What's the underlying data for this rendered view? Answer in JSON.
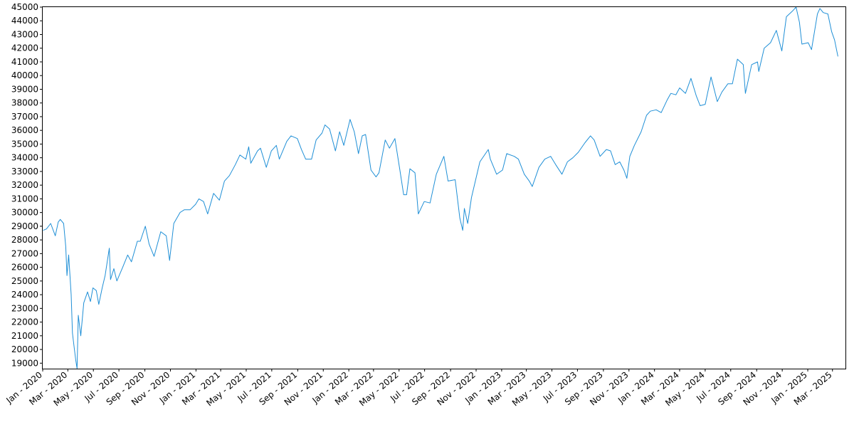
{
  "chart_data": {
    "type": "line",
    "title": "",
    "xlabel": "",
    "ylabel": "",
    "ylim": [
      18600,
      45000
    ],
    "xlim": [
      "2020-01-01",
      "2025-04-01"
    ],
    "grid": false,
    "line_color": "#1f8fd6",
    "y_ticks": [
      19000,
      20000,
      21000,
      22000,
      23000,
      24000,
      25000,
      26000,
      27000,
      28000,
      29000,
      30000,
      31000,
      32000,
      33000,
      34000,
      35000,
      36000,
      37000,
      38000,
      39000,
      40000,
      41000,
      42000,
      43000,
      44000,
      45000
    ],
    "x_ticks": [
      {
        "date": "2020-01-01",
        "label": "Jan - 2020"
      },
      {
        "date": "2020-03-01",
        "label": "Mar - 2020"
      },
      {
        "date": "2020-05-01",
        "label": "May - 2020"
      },
      {
        "date": "2020-07-01",
        "label": "Jul - 2020"
      },
      {
        "date": "2020-09-01",
        "label": "Sep - 2020"
      },
      {
        "date": "2020-11-01",
        "label": "Nov - 2020"
      },
      {
        "date": "2021-01-01",
        "label": "Jan - 2021"
      },
      {
        "date": "2021-03-01",
        "label": "Mar - 2021"
      },
      {
        "date": "2021-05-01",
        "label": "May - 2021"
      },
      {
        "date": "2021-07-01",
        "label": "Jul - 2021"
      },
      {
        "date": "2021-09-01",
        "label": "Sep - 2021"
      },
      {
        "date": "2021-11-01",
        "label": "Nov - 2021"
      },
      {
        "date": "2022-01-01",
        "label": "Jan - 2022"
      },
      {
        "date": "2022-03-01",
        "label": "Mar - 2022"
      },
      {
        "date": "2022-05-01",
        "label": "May - 2022"
      },
      {
        "date": "2022-07-01",
        "label": "Jul - 2022"
      },
      {
        "date": "2022-09-01",
        "label": "Sep - 2022"
      },
      {
        "date": "2022-11-01",
        "label": "Nov - 2022"
      },
      {
        "date": "2023-01-01",
        "label": "Jan - 2023"
      },
      {
        "date": "2023-03-01",
        "label": "Mar - 2023"
      },
      {
        "date": "2023-05-01",
        "label": "May - 2023"
      },
      {
        "date": "2023-07-01",
        "label": "Jul - 2023"
      },
      {
        "date": "2023-09-01",
        "label": "Sep - 2023"
      },
      {
        "date": "2023-11-01",
        "label": "Nov - 2023"
      },
      {
        "date": "2024-01-01",
        "label": "Jan - 2024"
      },
      {
        "date": "2024-03-01",
        "label": "Mar - 2024"
      },
      {
        "date": "2024-05-01",
        "label": "May - 2024"
      },
      {
        "date": "2024-07-01",
        "label": "Jul - 2024"
      },
      {
        "date": "2024-09-01",
        "label": "Sep - 2024"
      },
      {
        "date": "2024-11-01",
        "label": "Nov - 2024"
      },
      {
        "date": "2025-01-01",
        "label": "Jan - 2025"
      },
      {
        "date": "2025-03-01",
        "label": "Mar - 2025"
      }
    ],
    "series": [
      {
        "points": [
          [
            "2020-01-02",
            28700
          ],
          [
            "2020-01-10",
            28800
          ],
          [
            "2020-01-20",
            29200
          ],
          [
            "2020-01-31",
            28300
          ],
          [
            "2020-02-07",
            29300
          ],
          [
            "2020-02-12",
            29500
          ],
          [
            "2020-02-20",
            29200
          ],
          [
            "2020-02-25",
            27500
          ],
          [
            "2020-02-28",
            25400
          ],
          [
            "2020-03-03",
            26900
          ],
          [
            "2020-03-09",
            24000
          ],
          [
            "2020-03-12",
            21200
          ],
          [
            "2020-03-16",
            20200
          ],
          [
            "2020-03-20",
            19200
          ],
          [
            "2020-03-23",
            18600
          ],
          [
            "2020-03-26",
            22500
          ],
          [
            "2020-04-01",
            21000
          ],
          [
            "2020-04-08",
            23400
          ],
          [
            "2020-04-17",
            24200
          ],
          [
            "2020-04-24",
            23500
          ],
          [
            "2020-04-30",
            24500
          ],
          [
            "2020-05-08",
            24300
          ],
          [
            "2020-05-14",
            23300
          ],
          [
            "2020-05-22",
            24500
          ],
          [
            "2020-05-29",
            25400
          ],
          [
            "2020-06-08",
            27400
          ],
          [
            "2020-06-11",
            25100
          ],
          [
            "2020-06-19",
            25900
          ],
          [
            "2020-06-26",
            25000
          ],
          [
            "2020-07-10",
            26000
          ],
          [
            "2020-07-22",
            26900
          ],
          [
            "2020-07-31",
            26400
          ],
          [
            "2020-08-14",
            27900
          ],
          [
            "2020-08-21",
            27900
          ],
          [
            "2020-09-02",
            29000
          ],
          [
            "2020-09-11",
            27700
          ],
          [
            "2020-09-23",
            26800
          ],
          [
            "2020-10-09",
            28600
          ],
          [
            "2020-10-22",
            28300
          ],
          [
            "2020-10-30",
            26500
          ],
          [
            "2020-11-09",
            29200
          ],
          [
            "2020-11-24",
            30000
          ],
          [
            "2020-12-04",
            30200
          ],
          [
            "2020-12-18",
            30200
          ],
          [
            "2020-12-31",
            30600
          ],
          [
            "2021-01-08",
            31000
          ],
          [
            "2021-01-19",
            30800
          ],
          [
            "2021-01-29",
            29900
          ],
          [
            "2021-02-12",
            31400
          ],
          [
            "2021-02-26",
            30900
          ],
          [
            "2021-03-10",
            32300
          ],
          [
            "2021-03-22",
            32700
          ],
          [
            "2021-04-05",
            33500
          ],
          [
            "2021-04-16",
            34200
          ],
          [
            "2021-04-30",
            33900
          ],
          [
            "2021-05-07",
            34800
          ],
          [
            "2021-05-12",
            33600
          ],
          [
            "2021-05-28",
            34500
          ],
          [
            "2021-06-04",
            34700
          ],
          [
            "2021-06-18",
            33300
          ],
          [
            "2021-06-30",
            34500
          ],
          [
            "2021-07-12",
            34900
          ],
          [
            "2021-07-19",
            33900
          ],
          [
            "2021-08-06",
            35200
          ],
          [
            "2021-08-16",
            35600
          ],
          [
            "2021-08-31",
            35400
          ],
          [
            "2021-09-10",
            34600
          ],
          [
            "2021-09-20",
            33900
          ],
          [
            "2021-10-04",
            33900
          ],
          [
            "2021-10-15",
            35300
          ],
          [
            "2021-10-29",
            35800
          ],
          [
            "2021-11-05",
            36400
          ],
          [
            "2021-11-16",
            36100
          ],
          [
            "2021-11-30",
            34500
          ],
          [
            "2021-12-10",
            35900
          ],
          [
            "2021-12-20",
            34900
          ],
          [
            "2022-01-04",
            36800
          ],
          [
            "2022-01-14",
            35900
          ],
          [
            "2022-01-24",
            34300
          ],
          [
            "2022-02-02",
            35600
          ],
          [
            "2022-02-10",
            35700
          ],
          [
            "2022-02-23",
            33100
          ],
          [
            "2022-03-07",
            32600
          ],
          [
            "2022-03-14",
            32900
          ],
          [
            "2022-03-29",
            35300
          ],
          [
            "2022-04-08",
            34700
          ],
          [
            "2022-04-21",
            35400
          ],
          [
            "2022-05-03",
            33100
          ],
          [
            "2022-05-12",
            31300
          ],
          [
            "2022-05-19",
            31300
          ],
          [
            "2022-05-27",
            33200
          ],
          [
            "2022-06-08",
            32900
          ],
          [
            "2022-06-16",
            29900
          ],
          [
            "2022-06-30",
            30800
          ],
          [
            "2022-07-14",
            30700
          ],
          [
            "2022-07-29",
            32800
          ],
          [
            "2022-08-16",
            34100
          ],
          [
            "2022-08-26",
            32300
          ],
          [
            "2022-09-12",
            32400
          ],
          [
            "2022-09-23",
            29600
          ],
          [
            "2022-09-30",
            28700
          ],
          [
            "2022-10-04",
            30300
          ],
          [
            "2022-10-12",
            29200
          ],
          [
            "2022-10-21",
            31100
          ],
          [
            "2022-11-10",
            33700
          ],
          [
            "2022-11-30",
            34600
          ],
          [
            "2022-12-05",
            33900
          ],
          [
            "2022-12-20",
            32800
          ],
          [
            "2023-01-03",
            33100
          ],
          [
            "2023-01-13",
            34300
          ],
          [
            "2023-01-31",
            34100
          ],
          [
            "2023-02-10",
            33900
          ],
          [
            "2023-02-24",
            32800
          ],
          [
            "2023-03-08",
            32300
          ],
          [
            "2023-03-15",
            31900
          ],
          [
            "2023-03-31",
            33300
          ],
          [
            "2023-04-14",
            33900
          ],
          [
            "2023-04-28",
            34100
          ],
          [
            "2023-05-10",
            33500
          ],
          [
            "2023-05-25",
            32800
          ],
          [
            "2023-06-07",
            33700
          ],
          [
            "2023-06-20",
            34000
          ],
          [
            "2023-07-03",
            34400
          ],
          [
            "2023-07-19",
            35100
          ],
          [
            "2023-08-01",
            35600
          ],
          [
            "2023-08-10",
            35300
          ],
          [
            "2023-08-24",
            34100
          ],
          [
            "2023-09-08",
            34600
          ],
          [
            "2023-09-18",
            34500
          ],
          [
            "2023-09-29",
            33500
          ],
          [
            "2023-10-10",
            33700
          ],
          [
            "2023-10-20",
            33100
          ],
          [
            "2023-10-27",
            32500
          ],
          [
            "2023-11-03",
            34100
          ],
          [
            "2023-11-14",
            34900
          ],
          [
            "2023-11-30",
            35900
          ],
          [
            "2023-12-13",
            37100
          ],
          [
            "2023-12-22",
            37400
          ],
          [
            "2024-01-05",
            37500
          ],
          [
            "2024-01-17",
            37300
          ],
          [
            "2024-01-31",
            38200
          ],
          [
            "2024-02-09",
            38700
          ],
          [
            "2024-02-21",
            38600
          ],
          [
            "2024-03-01",
            39100
          ],
          [
            "2024-03-15",
            38700
          ],
          [
            "2024-03-28",
            39800
          ],
          [
            "2024-04-10",
            38500
          ],
          [
            "2024-04-19",
            37800
          ],
          [
            "2024-05-01",
            37900
          ],
          [
            "2024-05-15",
            39900
          ],
          [
            "2024-05-30",
            38100
          ],
          [
            "2024-06-10",
            38800
          ],
          [
            "2024-06-24",
            39400
          ],
          [
            "2024-07-05",
            39400
          ],
          [
            "2024-07-17",
            41200
          ],
          [
            "2024-07-31",
            40800
          ],
          [
            "2024-08-05",
            38700
          ],
          [
            "2024-08-20",
            40800
          ],
          [
            "2024-09-03",
            41000
          ],
          [
            "2024-09-06",
            40300
          ],
          [
            "2024-09-19",
            42000
          ],
          [
            "2024-10-04",
            42400
          ],
          [
            "2024-10-18",
            43300
          ],
          [
            "2024-10-31",
            41800
          ],
          [
            "2024-11-11",
            44300
          ],
          [
            "2024-11-25",
            44700
          ],
          [
            "2024-12-04",
            45000
          ],
          [
            "2024-12-12",
            43900
          ],
          [
            "2024-12-18",
            42300
          ],
          [
            "2025-01-02",
            42400
          ],
          [
            "2025-01-10",
            41900
          ],
          [
            "2025-01-24",
            44500
          ],
          [
            "2025-01-30",
            44900
          ],
          [
            "2025-02-07",
            44600
          ],
          [
            "2025-02-18",
            44500
          ],
          [
            "2025-02-27",
            43200
          ],
          [
            "2025-03-06",
            42600
          ],
          [
            "2025-03-14",
            41400
          ]
        ]
      }
    ]
  }
}
